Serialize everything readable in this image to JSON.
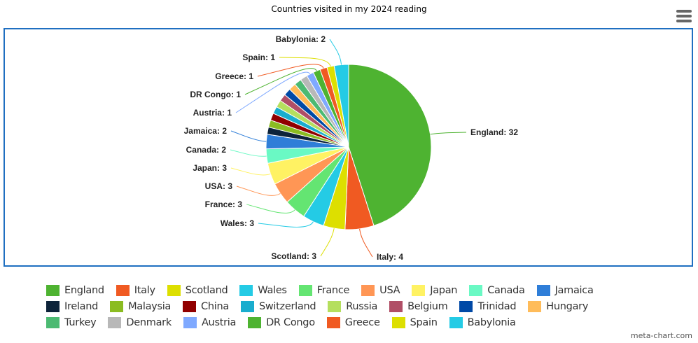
{
  "chart_data": {
    "type": "pie",
    "title": "Countries visited in my 2024 reading",
    "categories": [
      "England",
      "Italy",
      "Scotland",
      "Wales",
      "France",
      "USA",
      "Japan",
      "Canada",
      "Jamaica",
      "Ireland",
      "Malaysia",
      "China",
      "Switzerland",
      "Russia",
      "Belgium",
      "Trinidad",
      "Hungary",
      "Turkey",
      "Denmark",
      "Austria",
      "DR Congo",
      "Greece",
      "Spain",
      "Babylonia"
    ],
    "values": [
      32,
      4,
      3,
      3,
      3,
      3,
      3,
      2,
      2,
      1,
      1,
      1,
      1,
      1,
      1,
      1,
      1,
      1,
      1,
      1,
      1,
      1,
      1,
      2
    ],
    "colors": [
      "#4eb331",
      "#f05a22",
      "#dddf00",
      "#24cbe5",
      "#64e572",
      "#ff9655",
      "#fff263",
      "#6af9c4",
      "#2f7ed8",
      "#0d233a",
      "#8bbc21",
      "#910000",
      "#1aadce",
      "#b5df5e",
      "#b04e66",
      "#0049a6",
      "#ffbc5a",
      "#4cba72",
      "#b8b8b8",
      "#7fa9ff",
      "#4eb331",
      "#f05a22",
      "#dddf00",
      "#24cbe5"
    ],
    "data_labels_shown": [
      "England",
      "Italy",
      "Scotland",
      "Wales",
      "France",
      "USA",
      "Japan",
      "Canada",
      "Jamaica",
      "Austria",
      "DR Congo",
      "Greece",
      "Spain",
      "Babylonia"
    ],
    "legend_position": "bottom"
  },
  "credit": "meta-chart.com",
  "menu_icon": "hamburger-icon"
}
